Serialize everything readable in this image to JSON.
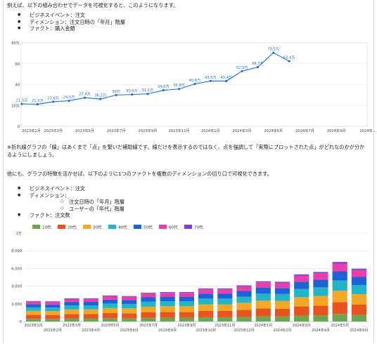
{
  "intro": "例えば、以下の組み合わせでデータを可視化すると、このようになります。",
  "list1": [
    "ビジネスイベント：注文",
    "ディメンション：注文日時の「年月」階層",
    "ファクト：購入金額"
  ],
  "note": "※折れ線グラフの「線」はあくまで「点」を繋いだ補助線です。線だけを表示するのではなく、点を強調して「実際にプロットされた点」がどれなのかが分かるようにしましょう。",
  "intro2": "他にも、グラフの特徴を活かせば、以下のように1つのファクトを複数のディメンションの切り口で可視化できます。",
  "list2": {
    "event": "ビジネスイベント：注文",
    "dimension": "ディメンション：",
    "sub": [
      "注文日時の「年月」階層",
      "ユーザーの「年代」階層"
    ],
    "fact": "ファクト：注文数"
  },
  "chart_data": [
    {
      "type": "line",
      "ylim": [
        0,
        80
      ],
      "yticks": [
        "0",
        "20万",
        "40",
        "60",
        "80万"
      ],
      "xticks": [
        "2023年1月",
        "2023年3月",
        "2023年5月",
        "2023年7月",
        "2023年9月",
        "2023年11月",
        "2024年1月",
        "2024年3月",
        "2024年5月",
        "2024年7月",
        "2024年9月",
        "2024年..."
      ],
      "x": [
        "2023年1月",
        "2023年2月",
        "2023年3月",
        "2023年4月",
        "2023年5月",
        "2023年6月",
        "2023年7月",
        "2023年8月",
        "2023年9月",
        "2023年10月",
        "2023年11月",
        "2023年12月",
        "2024年1月",
        "2024年2月",
        "2024年3月",
        "2024年4月",
        "2024年5月",
        "2024年6月"
      ],
      "values": [
        21.5,
        21.2,
        23.6,
        24.5,
        27.4,
        26.2,
        30,
        30.5,
        31.1,
        34.6,
        35.8,
        40.6,
        43.5,
        43.4,
        52.9,
        56.7,
        70.5,
        62.4
      ],
      "labels": [
        "21.5万",
        "21.2万",
        "23.6万",
        "24.5万",
        "27.4万",
        "26.2万",
        "30万",
        "30.5万",
        "31.1万",
        "34.6万",
        "35.8万",
        "40.6万",
        "43.5万",
        "43.4万",
        "52.9万",
        "56.7万",
        "70.5万",
        "62.4万"
      ],
      "color": "#1f6fd4"
    },
    {
      "type": "bar",
      "stacked": true,
      "ylim": [
        0,
        10000
      ],
      "yticks": [
        "0",
        "2,000",
        "4,000",
        "6,000",
        "8,000",
        "1万"
      ],
      "categories": [
        "2023年1月",
        "2023年2月",
        "2023年3月",
        "2023年4月",
        "2023年5月",
        "2023年6月",
        "2023年7月",
        "2023年8月",
        "2023年9月",
        "2023年10月",
        "2023年11月",
        "2023年12月",
        "2024年1月",
        "2024年2月",
        "2024年3月",
        "2024年4月",
        "2024年5月",
        "2024年6月"
      ],
      "legend_position": "top",
      "series": [
        {
          "name": "10代",
          "color": "#6aa84f",
          "values": [
            300,
            300,
            350,
            350,
            380,
            370,
            420,
            430,
            430,
            480,
            480,
            520,
            580,
            570,
            650,
            690,
            860,
            760
          ]
        },
        {
          "name": "20代",
          "color": "#e8541f",
          "values": [
            450,
            440,
            500,
            510,
            570,
            560,
            630,
            650,
            650,
            730,
            730,
            800,
            890,
            880,
            1050,
            1100,
            1320,
            1170
          ]
        },
        {
          "name": "30代",
          "color": "#f5a623",
          "values": [
            450,
            440,
            510,
            510,
            570,
            560,
            630,
            650,
            650,
            730,
            730,
            800,
            890,
            880,
            1050,
            1100,
            1300,
            1170
          ]
        },
        {
          "name": "40代",
          "color": "#22b5c8",
          "values": [
            400,
            390,
            450,
            450,
            510,
            500,
            560,
            570,
            570,
            650,
            650,
            700,
            790,
            780,
            920,
            970,
            1170,
            1030
          ]
        },
        {
          "name": "50代",
          "color": "#1c62d8",
          "values": [
            350,
            350,
            400,
            400,
            450,
            440,
            500,
            510,
            510,
            570,
            570,
            630,
            690,
            680,
            820,
            860,
            1030,
            910
          ]
        },
        {
          "name": "60代",
          "color": "#ea3eac",
          "values": [
            300,
            300,
            340,
            340,
            380,
            370,
            420,
            430,
            430,
            480,
            480,
            530,
            590,
            580,
            700,
            730,
            870,
            770
          ]
        },
        {
          "name": "70代",
          "color": "#7b3fd1",
          "values": [
            60,
            60,
            70,
            70,
            80,
            80,
            90,
            90,
            90,
            100,
            100,
            110,
            120,
            120,
            140,
            150,
            180,
            160
          ]
        }
      ]
    }
  ]
}
